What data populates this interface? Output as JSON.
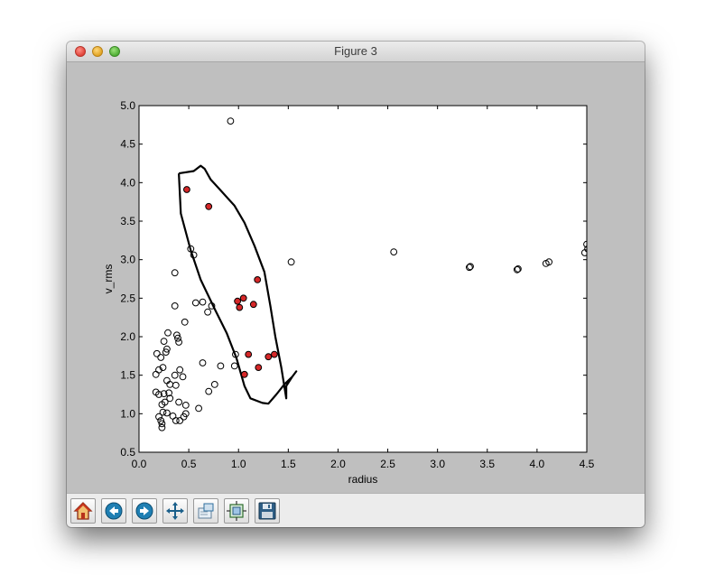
{
  "window": {
    "title": "Figure 3"
  },
  "toolbar": {
    "buttons": [
      {
        "name": "home-button",
        "icon": "home-icon"
      },
      {
        "name": "back-button",
        "icon": "arrow-left-icon"
      },
      {
        "name": "forward-button",
        "icon": "arrow-right-icon"
      },
      {
        "name": "pan-button",
        "icon": "move-arrows-icon"
      },
      {
        "name": "zoom-button",
        "icon": "zoom-rect-icon"
      },
      {
        "name": "subplots-button",
        "icon": "subplots-icon"
      },
      {
        "name": "save-button",
        "icon": "save-floppy-icon"
      }
    ]
  },
  "chart_data": {
    "type": "scatter",
    "xlabel": "radius",
    "ylabel": "v_rms",
    "xlim": [
      0.0,
      4.5
    ],
    "ylim": [
      0.5,
      5.0
    ],
    "xticks": [
      "0.0",
      "0.5",
      "1.0",
      "1.5",
      "2.0",
      "2.5",
      "3.0",
      "3.5",
      "4.0",
      "4.5"
    ],
    "yticks": [
      "0.5",
      "1.0",
      "1.5",
      "2.0",
      "2.5",
      "3.0",
      "3.5",
      "4.0",
      "4.5",
      "5.0"
    ],
    "grid": false,
    "series": [
      {
        "marker": "open-circle",
        "color": "#000000",
        "points": [
          [
            0.92,
            4.8
          ],
          [
            0.52,
            3.14
          ],
          [
            0.55,
            3.06
          ],
          [
            0.36,
            2.83
          ],
          [
            0.36,
            2.4
          ],
          [
            0.57,
            2.44
          ],
          [
            0.64,
            2.45
          ],
          [
            0.69,
            2.32
          ],
          [
            0.73,
            2.4
          ],
          [
            0.46,
            2.19
          ],
          [
            0.38,
            2.02
          ],
          [
            0.39,
            1.98
          ],
          [
            0.4,
            1.93
          ],
          [
            0.29,
            2.05
          ],
          [
            0.25,
            1.94
          ],
          [
            0.27,
            1.8
          ],
          [
            0.28,
            1.84
          ],
          [
            0.18,
            1.78
          ],
          [
            0.22,
            1.73
          ],
          [
            0.24,
            1.6
          ],
          [
            0.2,
            1.57
          ],
          [
            0.17,
            1.51
          ],
          [
            0.28,
            1.43
          ],
          [
            0.36,
            1.5
          ],
          [
            0.44,
            1.48
          ],
          [
            0.41,
            1.57
          ],
          [
            0.31,
            1.38
          ],
          [
            0.37,
            1.37
          ],
          [
            0.17,
            1.28
          ],
          [
            0.2,
            1.25
          ],
          [
            0.25,
            1.26
          ],
          [
            0.3,
            1.27
          ],
          [
            0.31,
            1.2
          ],
          [
            0.26,
            1.15
          ],
          [
            0.23,
            1.12
          ],
          [
            0.4,
            1.15
          ],
          [
            0.47,
            1.11
          ],
          [
            0.24,
            1.02
          ],
          [
            0.28,
            1.01
          ],
          [
            0.34,
            0.97
          ],
          [
            0.2,
            0.96
          ],
          [
            0.22,
            0.91
          ],
          [
            0.23,
            0.87
          ],
          [
            0.23,
            0.82
          ],
          [
            0.37,
            0.91
          ],
          [
            0.41,
            0.91
          ],
          [
            0.45,
            0.96
          ],
          [
            0.47,
            1.0
          ],
          [
            0.6,
            1.07
          ],
          [
            0.64,
            1.66
          ],
          [
            0.82,
            1.62
          ],
          [
            0.96,
            1.62
          ],
          [
            0.97,
            1.77
          ],
          [
            0.76,
            1.38
          ],
          [
            0.7,
            1.29
          ],
          [
            1.53,
            2.97
          ],
          [
            2.56,
            3.1
          ],
          [
            3.32,
            2.9
          ],
          [
            3.33,
            2.91
          ],
          [
            3.8,
            2.87
          ],
          [
            3.81,
            2.88
          ],
          [
            4.09,
            2.95
          ],
          [
            4.12,
            2.97
          ],
          [
            4.48,
            3.09
          ],
          [
            4.5,
            3.2
          ],
          [
            4.51,
            3.14
          ]
        ]
      },
      {
        "marker": "filled-circle",
        "color": "#d62728",
        "points": [
          [
            0.48,
            3.91
          ],
          [
            0.7,
            3.69
          ],
          [
            1.19,
            2.74
          ],
          [
            0.99,
            2.46
          ],
          [
            1.05,
            2.5
          ],
          [
            1.01,
            2.38
          ],
          [
            1.15,
            2.42
          ],
          [
            1.1,
            1.77
          ],
          [
            1.3,
            1.74
          ],
          [
            1.36,
            1.77
          ],
          [
            1.2,
            1.6
          ],
          [
            1.06,
            1.51
          ]
        ]
      }
    ],
    "curve": {
      "color": "#000000",
      "points": [
        [
          0.4,
          4.12
        ],
        [
          0.55,
          4.15
        ],
        [
          0.62,
          4.22
        ],
        [
          0.66,
          4.18
        ],
        [
          0.72,
          4.04
        ],
        [
          0.82,
          3.9
        ],
        [
          0.96,
          3.7
        ],
        [
          1.06,
          3.48
        ],
        [
          1.16,
          3.18
        ],
        [
          1.26,
          2.84
        ],
        [
          1.32,
          2.4
        ],
        [
          1.37,
          2.0
        ],
        [
          1.43,
          1.6
        ],
        [
          1.48,
          1.2
        ],
        [
          1.48,
          1.36
        ],
        [
          1.54,
          1.48
        ],
        [
          1.58,
          1.55
        ],
        [
          1.54,
          1.48
        ],
        [
          1.46,
          1.38
        ],
        [
          1.38,
          1.25
        ],
        [
          1.3,
          1.13
        ],
        [
          1.24,
          1.14
        ],
        [
          1.12,
          1.2
        ],
        [
          1.06,
          1.36
        ],
        [
          0.98,
          1.72
        ],
        [
          0.88,
          2.05
        ],
        [
          0.76,
          2.36
        ],
        [
          0.62,
          2.74
        ],
        [
          0.52,
          3.12
        ],
        [
          0.42,
          3.6
        ],
        [
          0.4,
          4.12
        ]
      ]
    }
  }
}
